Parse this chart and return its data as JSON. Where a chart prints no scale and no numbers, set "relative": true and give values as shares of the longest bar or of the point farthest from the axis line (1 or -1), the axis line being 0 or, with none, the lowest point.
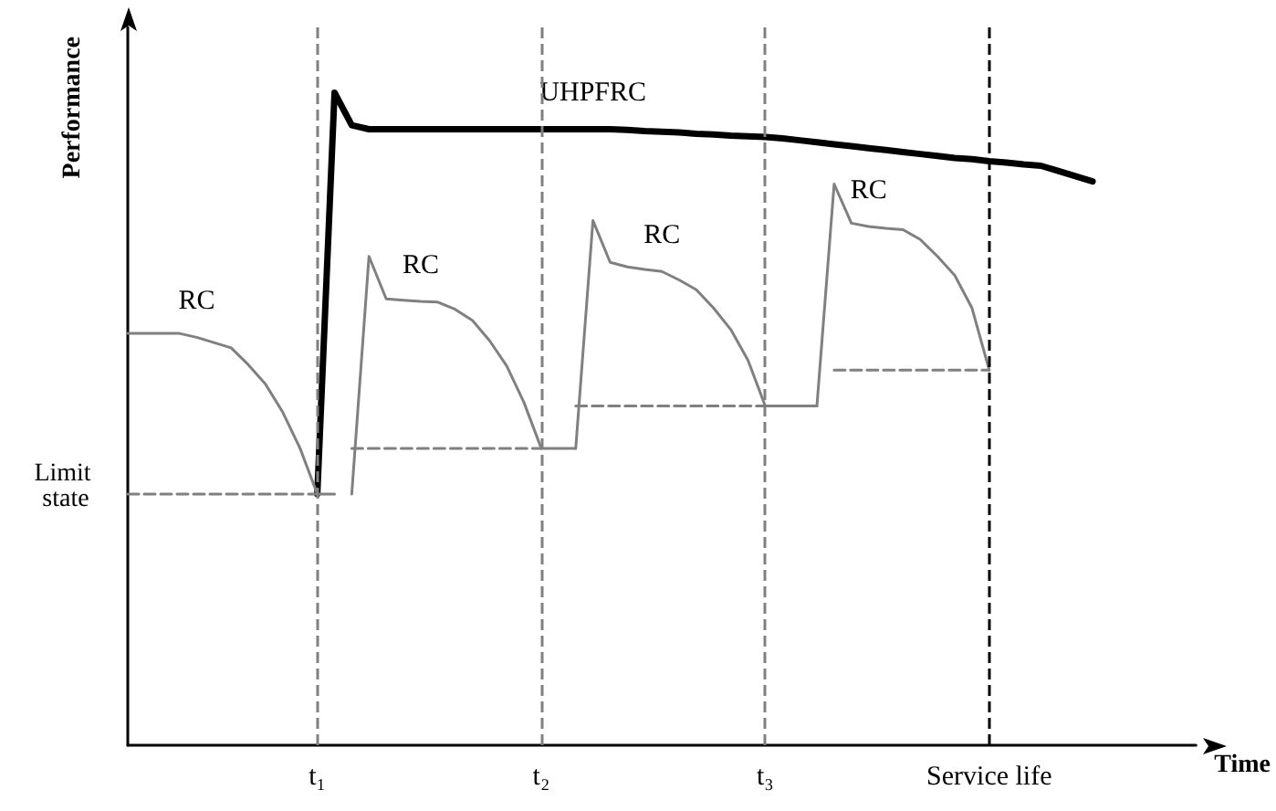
{
  "chart_data": {
    "type": "line",
    "relative": true,
    "ylabel": "Performance",
    "xlabel": "Time",
    "marker": "none",
    "grid": false,
    "categories": [
      null,
      null,
      null,
      null,
      null,
      null,
      null,
      null,
      null,
      null,
      null,
      "t₁",
      null,
      null,
      null,
      null,
      null,
      null,
      null,
      null,
      null,
      null,
      null,
      null,
      "t₂",
      null,
      null,
      null,
      null,
      null,
      null,
      null,
      null,
      null,
      null,
      null,
      null,
      "t₃",
      null,
      null,
      null,
      null,
      null,
      null,
      null,
      null,
      null,
      null,
      null,
      null,
      "Service life",
      null,
      null,
      null,
      null,
      null,
      null,
      null,
      null,
      null,
      null,
      null,
      null
    ],
    "series": [
      {
        "name": "UHPFRC",
        "color": "#000000",
        "line_style": "solid",
        "values": [
          null,
          null,
          null,
          null,
          null,
          null,
          null,
          null,
          null,
          null,
          null,
          0.385,
          1,
          0.95,
          0.944,
          0.944,
          0.944,
          0.944,
          0.944,
          0.944,
          0.944,
          0.944,
          0.944,
          0.944,
          0.944,
          0.944,
          0.944,
          0.944,
          0.944,
          0.943,
          0.941,
          0.94,
          0.939,
          0.937,
          0.936,
          0.934,
          0.933,
          0.932,
          0.93,
          0.927,
          0.924,
          0.921,
          0.918,
          0.915,
          0.912,
          0.909,
          0.906,
          0.903,
          0.9,
          0.898,
          0.895,
          0.893,
          0.89,
          0.888,
          0.88,
          0.872,
          0.864,
          null,
          null,
          null,
          null,
          null,
          null
        ]
      },
      {
        "name": "RC",
        "color": "#808080",
        "line_style": "solid",
        "values": [
          0.631,
          0.631,
          0.631,
          0.631,
          0.625,
          0.617,
          0.609,
          0.583,
          0.553,
          0.51,
          0.455,
          0.385,
          0.385,
          null,
          null,
          null,
          null,
          null,
          null,
          null,
          null,
          null,
          null,
          null,
          null,
          null,
          null,
          null,
          null,
          null,
          null,
          null,
          null,
          null,
          null,
          null,
          null,
          null,
          null,
          null,
          null,
          null,
          null,
          null,
          null,
          null,
          null,
          null,
          null,
          null,
          null,
          null,
          null,
          null,
          null,
          null,
          null,
          null,
          null,
          null,
          null,
          null,
          null
        ]
      },
      {
        "name": "RC",
        "color": "#808080",
        "line_style": "solid",
        "values": [
          null,
          null,
          null,
          null,
          null,
          null,
          null,
          null,
          null,
          null,
          null,
          null,
          null,
          0.385,
          0.749,
          0.684,
          0.682,
          0.68,
          0.679,
          0.668,
          0.651,
          0.62,
          0.581,
          0.525,
          0.455,
          0.455,
          0.455,
          null,
          null,
          null,
          null,
          null,
          null,
          null,
          null,
          null,
          null,
          null,
          null,
          null,
          null,
          null,
          null,
          null,
          null,
          null,
          null,
          null,
          null,
          null,
          null,
          null,
          null,
          null,
          null,
          null,
          null,
          null,
          null,
          null,
          null,
          null,
          null
        ]
      },
      {
        "name": "RC",
        "color": "#808080",
        "line_style": "solid",
        "values": [
          null,
          null,
          null,
          null,
          null,
          null,
          null,
          null,
          null,
          null,
          null,
          null,
          null,
          null,
          null,
          null,
          null,
          null,
          null,
          null,
          null,
          null,
          null,
          null,
          null,
          null,
          0.455,
          0.804,
          0.74,
          0.733,
          0.729,
          0.726,
          0.713,
          0.698,
          0.67,
          0.637,
          0.59,
          0.52,
          0.52,
          0.52,
          0.52,
          null,
          null,
          null,
          null,
          null,
          null,
          null,
          null,
          null,
          null,
          null,
          null,
          null,
          null,
          null,
          null,
          null,
          null,
          null,
          null,
          null,
          null
        ]
      },
      {
        "name": "RC",
        "color": "#808080",
        "line_style": "solid",
        "values": [
          null,
          null,
          null,
          null,
          null,
          null,
          null,
          null,
          null,
          null,
          null,
          null,
          null,
          null,
          null,
          null,
          null,
          null,
          null,
          null,
          null,
          null,
          null,
          null,
          null,
          null,
          null,
          null,
          null,
          null,
          null,
          null,
          null,
          null,
          null,
          null,
          null,
          null,
          null,
          null,
          0.52,
          0.86,
          0.8,
          0.795,
          0.792,
          0.79,
          0.775,
          0.749,
          0.72,
          0.67,
          0.575,
          null,
          null,
          null,
          null,
          null,
          null,
          null,
          null,
          null,
          null,
          null,
          null
        ]
      },
      {
        "name": "Limit state",
        "color": "#808080",
        "line_style": "dashed",
        "values": [
          0.385,
          0.385,
          0.385,
          0.385,
          0.385,
          0.385,
          0.385,
          0.385,
          0.385,
          0.385,
          0.385,
          0.385,
          null,
          null,
          null,
          null,
          null,
          null,
          null,
          null,
          null,
          null,
          null,
          null,
          null,
          null,
          null,
          null,
          null,
          null,
          null,
          null,
          null,
          null,
          null,
          null,
          null,
          null,
          null,
          null,
          null,
          null,
          null,
          null,
          null,
          null,
          null,
          null,
          null,
          null,
          null,
          null,
          null,
          null,
          null,
          null,
          null,
          null,
          null,
          null,
          null,
          null,
          null
        ]
      },
      {
        "color": "#808080",
        "line_style": "dashed",
        "values": [
          null,
          null,
          null,
          null,
          null,
          null,
          null,
          null,
          null,
          null,
          null,
          null,
          null,
          0.455,
          0.455,
          0.455,
          0.455,
          0.455,
          0.455,
          0.455,
          0.455,
          0.455,
          0.455,
          0.455,
          0.455,
          null,
          null,
          null,
          null,
          null,
          null,
          null,
          null,
          null,
          null,
          null,
          null,
          null,
          null,
          null,
          null,
          null,
          null,
          null,
          null,
          null,
          null,
          null,
          null,
          null,
          null,
          null,
          null,
          null,
          null,
          null,
          null,
          null,
          null,
          null,
          null,
          null,
          null
        ]
      },
      {
        "color": "#808080",
        "line_style": "dashed",
        "values": [
          null,
          null,
          null,
          null,
          null,
          null,
          null,
          null,
          null,
          null,
          null,
          null,
          null,
          null,
          null,
          null,
          null,
          null,
          null,
          null,
          null,
          null,
          null,
          null,
          null,
          null,
          0.52,
          0.52,
          0.52,
          0.52,
          0.52,
          0.52,
          0.52,
          0.52,
          0.52,
          0.52,
          0.52,
          0.52,
          null,
          null,
          null,
          null,
          null,
          null,
          null,
          null,
          null,
          null,
          null,
          null,
          null,
          null,
          null,
          null,
          null,
          null,
          null,
          null,
          null,
          null,
          null,
          null,
          null
        ]
      },
      {
        "color": "#808080",
        "line_style": "dashed",
        "values": [
          null,
          null,
          null,
          null,
          null,
          null,
          null,
          null,
          null,
          null,
          null,
          null,
          null,
          null,
          null,
          null,
          null,
          null,
          null,
          null,
          null,
          null,
          null,
          null,
          null,
          null,
          null,
          null,
          null,
          null,
          null,
          null,
          null,
          null,
          null,
          null,
          null,
          null,
          null,
          null,
          null,
          0.575,
          0.575,
          0.575,
          0.575,
          0.575,
          0.575,
          0.575,
          0.575,
          0.575,
          0.575,
          null,
          null,
          null,
          null,
          null,
          null,
          null,
          null,
          null,
          null,
          null,
          null
        ]
      }
    ],
    "ref_lines": [
      {
        "axis": "x",
        "value": "t₁",
        "color": "#808080",
        "line_style": "dashed"
      },
      {
        "axis": "x",
        "value": "t₂",
        "color": "#808080",
        "line_style": "dashed"
      },
      {
        "axis": "x",
        "value": "t₃",
        "color": "#808080",
        "line_style": "dashed"
      },
      {
        "axis": "x",
        "value": "Service life",
        "color": "#000000",
        "line_style": "dashed"
      }
    ]
  }
}
